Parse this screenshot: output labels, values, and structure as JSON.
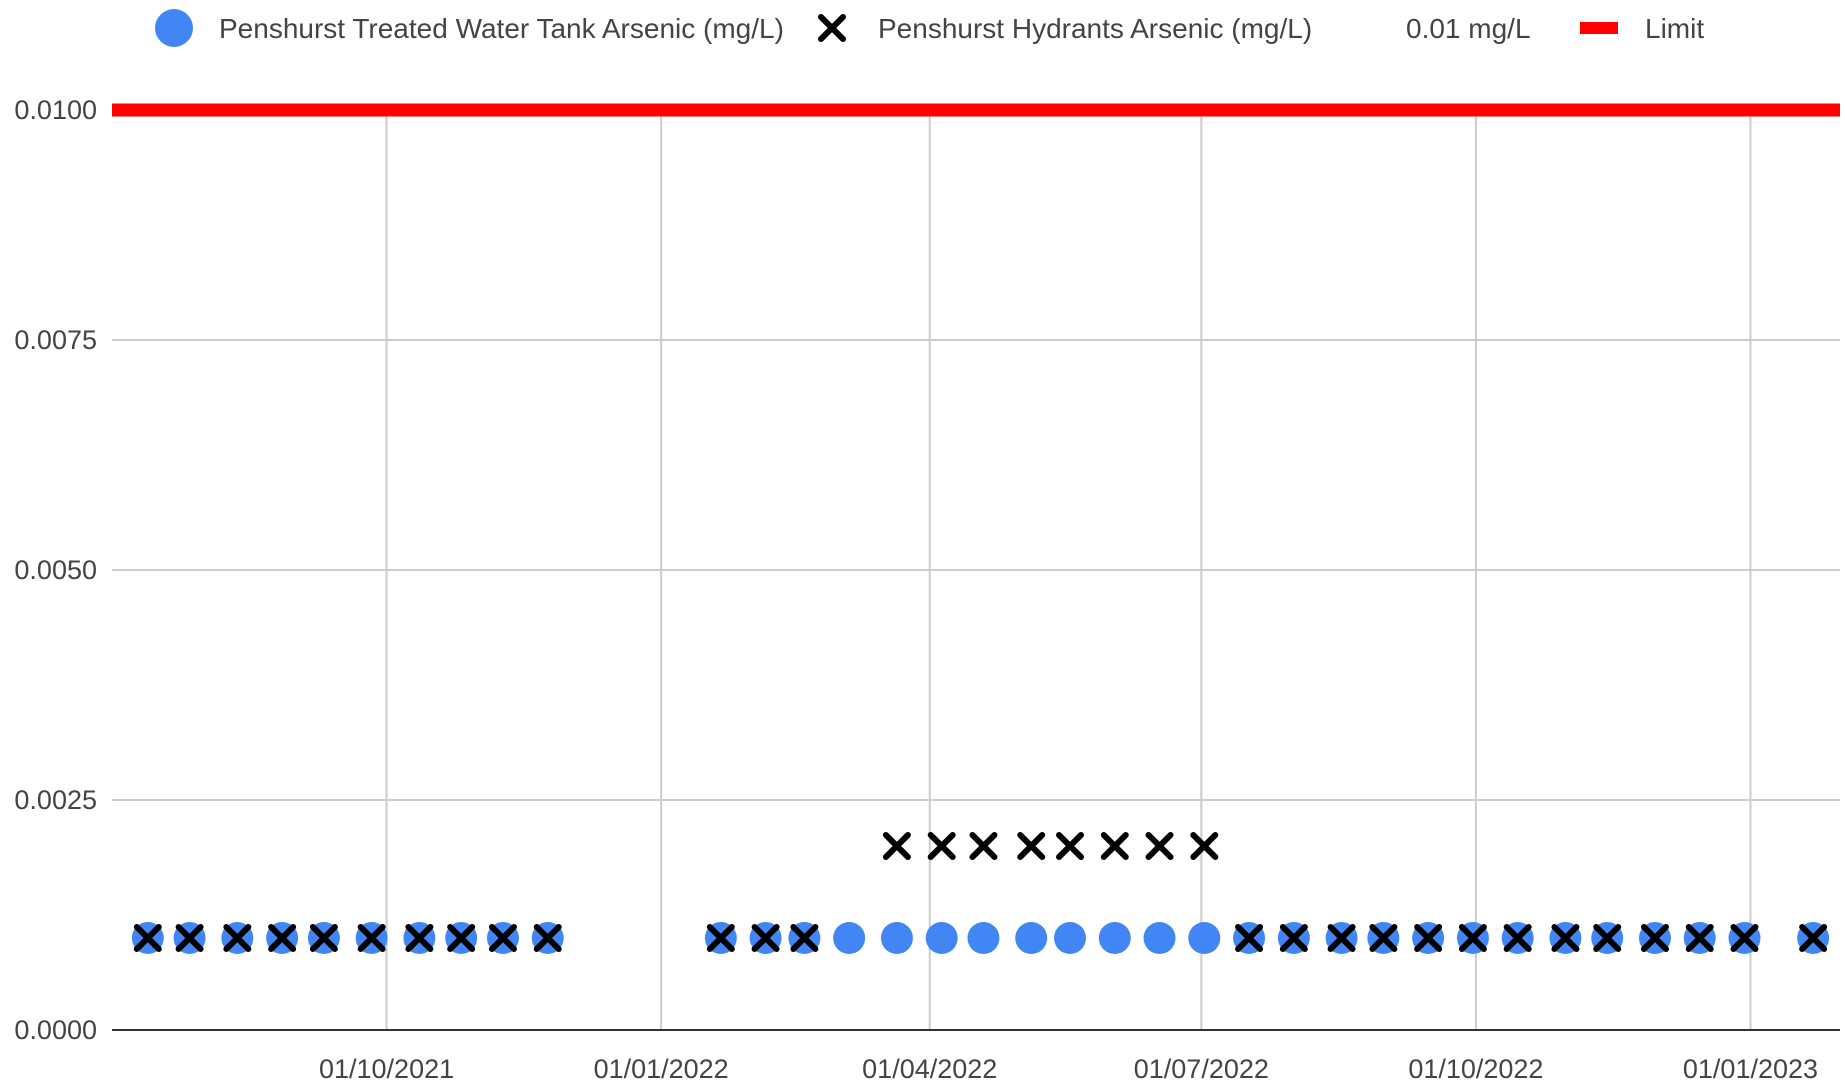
{
  "chart_data": {
    "type": "scatter",
    "x_axis": {
      "ticks": [
        "01/10/2021",
        "01/01/2022",
        "01/04/2022",
        "01/07/2022",
        "01/10/2022",
        "01/01/2023"
      ],
      "range": [
        "2021-07-01",
        "2023-01-31"
      ]
    },
    "y_axis": {
      "ticks": [
        "0.0000",
        "0.0025",
        "0.0050",
        "0.0075",
        "0.0100"
      ],
      "range": [
        0,
        0.01
      ]
    },
    "grid": true,
    "legend": {
      "placement": "top",
      "entries": [
        {
          "label": "Penshurst Treated Water Tank Arsenic (mg/L)",
          "symbol": "circle",
          "color": "#4285f4"
        },
        {
          "label": "Penshurst Hydrants Arsenic (mg/L)",
          "symbol": "x",
          "color": "#000000"
        },
        {
          "label": "0.01 mg/L",
          "symbol": "none",
          "color": "#444444"
        },
        {
          "label": "Limit",
          "symbol": "line",
          "color": "#ff0000"
        }
      ]
    },
    "limit": {
      "value": 0.01,
      "color": "#ff0000"
    },
    "series": [
      {
        "name": "Penshurst Treated Water Tank Arsenic (mg/L)",
        "color": "#4285f4",
        "marker": "circle",
        "points": [
          [
            "2021-07-13",
            0.001
          ],
          [
            "2021-07-27",
            0.001
          ],
          [
            "2021-08-12",
            0.001
          ],
          [
            "2021-08-27",
            0.001
          ],
          [
            "2021-09-10",
            0.001
          ],
          [
            "2021-09-26",
            0.001
          ],
          [
            "2021-10-12",
            0.001
          ],
          [
            "2021-10-26",
            0.001
          ],
          [
            "2021-11-09",
            0.001
          ],
          [
            "2021-11-24",
            0.001
          ],
          [
            "2022-01-21",
            0.001
          ],
          [
            "2022-02-05",
            0.001
          ],
          [
            "2022-02-18",
            0.001
          ],
          [
            "2022-03-05",
            0.001
          ],
          [
            "2022-03-21",
            0.001
          ],
          [
            "2022-04-05",
            0.001
          ],
          [
            "2022-04-19",
            0.001
          ],
          [
            "2022-05-05",
            0.001
          ],
          [
            "2022-05-18",
            0.001
          ],
          [
            "2022-06-02",
            0.001
          ],
          [
            "2022-06-17",
            0.001
          ],
          [
            "2022-07-02",
            0.001
          ],
          [
            "2022-07-17",
            0.001
          ],
          [
            "2022-08-01",
            0.001
          ],
          [
            "2022-08-17",
            0.001
          ],
          [
            "2022-08-31",
            0.001
          ],
          [
            "2022-09-15",
            0.001
          ],
          [
            "2022-09-30",
            0.001
          ],
          [
            "2022-10-15",
            0.001
          ],
          [
            "2022-10-31",
            0.001
          ],
          [
            "2022-11-14",
            0.001
          ],
          [
            "2022-11-30",
            0.001
          ],
          [
            "2022-12-15",
            0.001
          ],
          [
            "2022-12-30",
            0.001
          ],
          [
            "2023-01-22",
            0.001
          ]
        ]
      },
      {
        "name": "Penshurst Hydrants Arsenic (mg/L)",
        "color": "#000000",
        "marker": "x",
        "points": [
          [
            "2021-07-13",
            0.001
          ],
          [
            "2021-07-27",
            0.001
          ],
          [
            "2021-08-12",
            0.001
          ],
          [
            "2021-08-27",
            0.001
          ],
          [
            "2021-09-10",
            0.001
          ],
          [
            "2021-09-26",
            0.001
          ],
          [
            "2021-10-12",
            0.001
          ],
          [
            "2021-10-26",
            0.001
          ],
          [
            "2021-11-09",
            0.001
          ],
          [
            "2021-11-24",
            0.001
          ],
          [
            "2022-01-21",
            0.001
          ],
          [
            "2022-02-05",
            0.001
          ],
          [
            "2022-02-18",
            0.001
          ],
          [
            "2022-03-21",
            0.002
          ],
          [
            "2022-04-05",
            0.002
          ],
          [
            "2022-04-19",
            0.002
          ],
          [
            "2022-05-05",
            0.002
          ],
          [
            "2022-05-18",
            0.002
          ],
          [
            "2022-06-02",
            0.002
          ],
          [
            "2022-06-17",
            0.002
          ],
          [
            "2022-07-02",
            0.002
          ],
          [
            "2022-07-17",
            0.001
          ],
          [
            "2022-08-01",
            0.001
          ],
          [
            "2022-08-17",
            0.001
          ],
          [
            "2022-08-31",
            0.001
          ],
          [
            "2022-09-15",
            0.001
          ],
          [
            "2022-09-30",
            0.001
          ],
          [
            "2022-10-15",
            0.001
          ],
          [
            "2022-10-31",
            0.001
          ],
          [
            "2022-11-14",
            0.001
          ],
          [
            "2022-11-30",
            0.001
          ],
          [
            "2022-12-15",
            0.001
          ],
          [
            "2022-12-30",
            0.001
          ],
          [
            "2023-01-22",
            0.001
          ]
        ]
      }
    ]
  }
}
